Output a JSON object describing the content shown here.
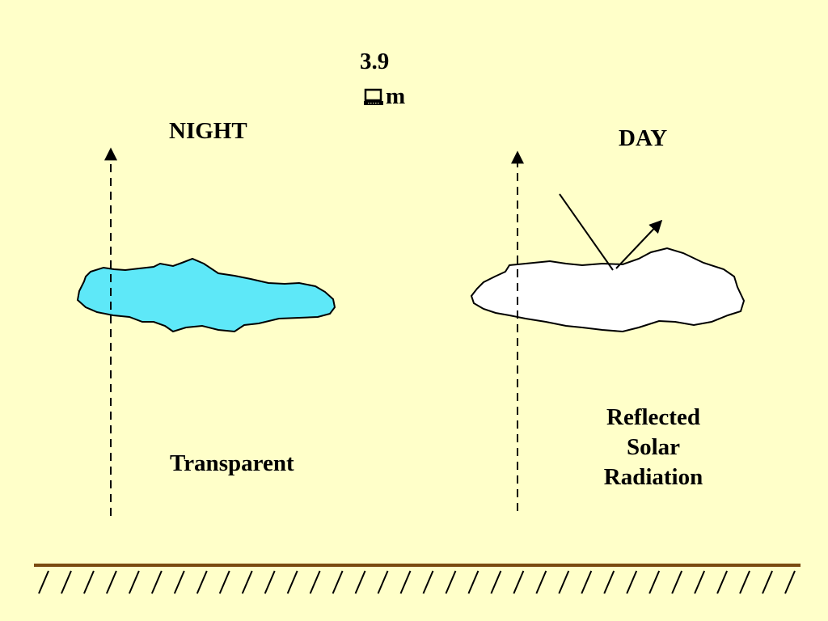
{
  "header": {
    "wavelength_value": "3.9",
    "wavelength_unit": "m",
    "micro_symbol_icon": "micro-symbol-box-icon"
  },
  "night_panel": {
    "title": "NIGHT",
    "caption": "Transparent",
    "cloud_fill": "#5ee8f8",
    "ray_style": "dashed-upward"
  },
  "day_panel": {
    "title": "DAY",
    "caption_lines": [
      "Reflected",
      "Solar",
      "Radiation"
    ],
    "cloud_fill": "#ffffff",
    "ray_style": "dashed-upward"
  },
  "ground": {
    "line_color": "#7a4a10",
    "hatch_count": 34
  }
}
